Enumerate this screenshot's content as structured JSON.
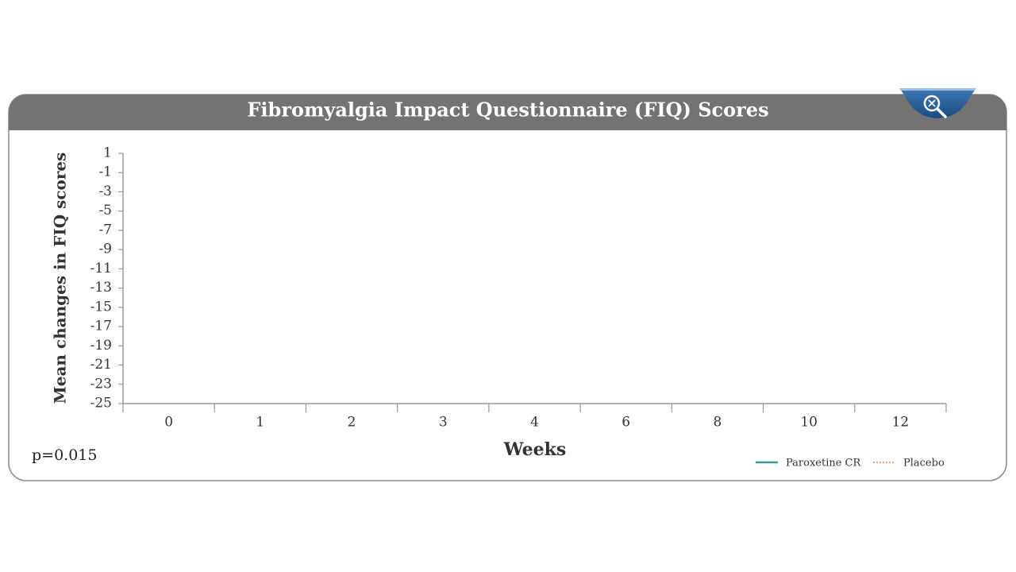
{
  "chart_data": {
    "type": "line",
    "title": "Fibromyalgia Impact Questionnaire (FIQ) Scores",
    "x_label": "Weeks",
    "y_label": "Mean changes in FIQ scores",
    "annotation": "p=0.015",
    "categories": [
      "0",
      "1",
      "2",
      "3",
      "4",
      "6",
      "8",
      "10",
      "12"
    ],
    "series": [
      {
        "name": "Paroxetine CR",
        "color": "#3c9a9a",
        "style": "solid",
        "values": [
          null,
          null,
          null,
          null,
          null,
          null,
          null,
          null,
          null
        ]
      },
      {
        "name": "Placebo",
        "color": "#f0a468",
        "style": "dotted",
        "values": [
          null,
          null,
          null,
          null,
          null,
          null,
          null,
          null,
          null
        ]
      }
    ],
    "ylim": [
      -25,
      1
    ],
    "yticks": [
      1,
      -1,
      -3,
      -5,
      -7,
      -9,
      -11,
      -13,
      -15,
      -17,
      -19,
      -21,
      -23,
      -25
    ],
    "grid": false
  }
}
